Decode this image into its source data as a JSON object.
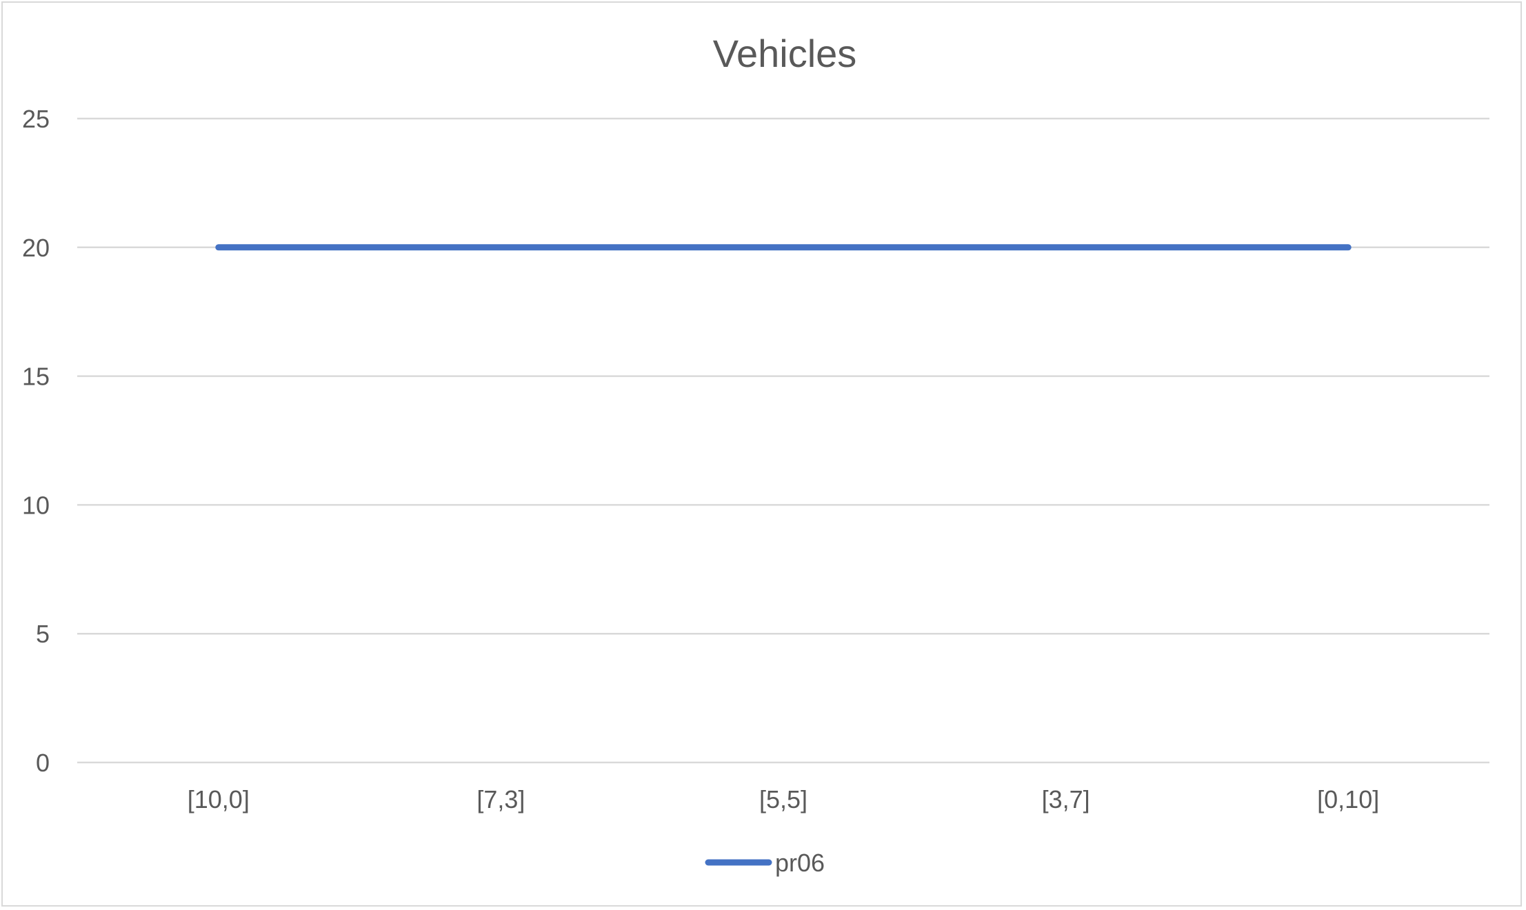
{
  "chart_data": {
    "type": "line",
    "title": "Vehicles",
    "xlabel": "",
    "ylabel": "",
    "categories": [
      "[10,0]",
      "[7,3]",
      "[5,5]",
      "[3,7]",
      "[0,10]"
    ],
    "series": [
      {
        "name": "pr06",
        "values": [
          20,
          20,
          20,
          20,
          20
        ],
        "color": "#4472c4"
      }
    ],
    "y_ticks": [
      0,
      5,
      10,
      15,
      20,
      25
    ],
    "ylim": [
      0,
      25
    ],
    "grid": true,
    "gridline_color": "#d9d9d9",
    "legend": "bottom"
  }
}
